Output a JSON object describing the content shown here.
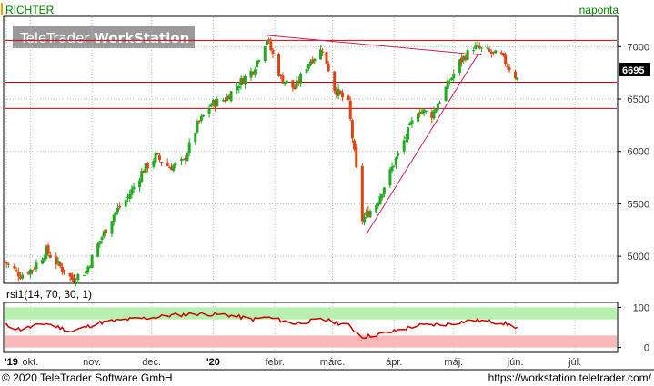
{
  "window": {
    "symbol": "RICHTER",
    "period": "naponta",
    "watermark_prefix": "TeleTrader ",
    "watermark_bold": "WorkStation",
    "copyright": "© 2020 TeleTrader Software GmbH",
    "url": "https://workstation.teletrader.com/"
  },
  "colors": {
    "accent_orange": "#f0a000",
    "title_green": "#008800",
    "candle_up": "#22aa22",
    "candle_down": "#dd4411",
    "hline": "#cc0000",
    "trendline": "#cc2255",
    "rsi_line": "#cc0000",
    "rsi_upper_band": "#b8f0b0",
    "rsi_lower_band": "#f8b8b8",
    "grid": "#a8c8a8",
    "price_label_bg": "#000000"
  },
  "chart_data": [
    {
      "type": "candlestick",
      "title": "RICHTER",
      "period": "naponta",
      "xlabels": [
        "'19",
        "okt.",
        "nov.",
        "dec.",
        "'20",
        "febr.",
        "márc.",
        "ápr.",
        "máj.",
        "jún.",
        "júl."
      ],
      "yticks": [
        "7000",
        "6500",
        "6000",
        "5500",
        "5000"
      ],
      "ytick_values": [
        7000,
        6500,
        6000,
        5500,
        5000
      ],
      "ylim": [
        4750,
        7280
      ],
      "last_price": "6695",
      "horizontal_lines": [
        7060,
        6660,
        6410
      ],
      "trendlines": [
        {
          "from": [
            "2020-01-27",
            7110
          ],
          "to": [
            "2020-05-15",
            6920
          ]
        },
        {
          "from": [
            "2020-03-18",
            5210
          ],
          "to": [
            "2020-05-13",
            6920
          ]
        }
      ],
      "x_range": [
        "2019-09-18",
        "2020-07-22"
      ],
      "grid": true,
      "series": [
        {
          "x": "2019-09-18",
          "v": 4950
        },
        {
          "x": "2019-09-26",
          "v": 4820
        },
        {
          "x": "2019-10-02",
          "v": 4880
        },
        {
          "x": "2019-10-09",
          "v": 5050
        },
        {
          "x": "2019-10-15",
          "v": 4920
        },
        {
          "x": "2019-10-22",
          "v": 4780
        },
        {
          "x": "2019-10-29",
          "v": 4860
        },
        {
          "x": "2019-11-05",
          "v": 5150
        },
        {
          "x": "2019-11-12",
          "v": 5400
        },
        {
          "x": "2019-11-19",
          "v": 5560
        },
        {
          "x": "2019-11-26",
          "v": 5800
        },
        {
          "x": "2019-12-03",
          "v": 5950
        },
        {
          "x": "2019-12-10",
          "v": 5850
        },
        {
          "x": "2019-12-17",
          "v": 5900
        },
        {
          "x": "2019-12-24",
          "v": 6250
        },
        {
          "x": "2019-12-31",
          "v": 6450
        },
        {
          "x": "2020-01-07",
          "v": 6500
        },
        {
          "x": "2020-01-14",
          "v": 6650
        },
        {
          "x": "2020-01-21",
          "v": 6780
        },
        {
          "x": "2020-01-28",
          "v": 7080
        },
        {
          "x": "2020-02-04",
          "v": 6700
        },
        {
          "x": "2020-02-11",
          "v": 6600
        },
        {
          "x": "2020-02-18",
          "v": 6850
        },
        {
          "x": "2020-02-25",
          "v": 6980
        },
        {
          "x": "2020-03-02",
          "v": 6600
        },
        {
          "x": "2020-03-09",
          "v": 6450
        },
        {
          "x": "2020-03-16",
          "v": 5350
        },
        {
          "x": "2020-03-23",
          "v": 5500
        },
        {
          "x": "2020-03-30",
          "v": 5800
        },
        {
          "x": "2020-04-06",
          "v": 6100
        },
        {
          "x": "2020-04-13",
          "v": 6400
        },
        {
          "x": "2020-04-20",
          "v": 6350
        },
        {
          "x": "2020-04-27",
          "v": 6600
        },
        {
          "x": "2020-05-04",
          "v": 6850
        },
        {
          "x": "2020-05-11",
          "v": 7000
        },
        {
          "x": "2020-05-18",
          "v": 6950
        },
        {
          "x": "2020-05-25",
          "v": 6900
        },
        {
          "x": "2020-06-02",
          "v": 6695
        }
      ]
    },
    {
      "type": "line",
      "title": "rsi1(14, 70, 30, 1)",
      "yticks": [
        "100",
        "0"
      ],
      "ytick_values": [
        100,
        0
      ],
      "ylim": [
        -10,
        110
      ],
      "bands": [
        [
          70,
          100
        ],
        [
          0,
          30
        ]
      ],
      "grid": true,
      "series": [
        {
          "x": "2019-09-18",
          "v": 56
        },
        {
          "x": "2019-09-26",
          "v": 45
        },
        {
          "x": "2019-10-09",
          "v": 60
        },
        {
          "x": "2019-10-22",
          "v": 40
        },
        {
          "x": "2019-11-05",
          "v": 62
        },
        {
          "x": "2019-11-19",
          "v": 70
        },
        {
          "x": "2019-12-03",
          "v": 75
        },
        {
          "x": "2019-12-10",
          "v": 80
        },
        {
          "x": "2019-12-24",
          "v": 84
        },
        {
          "x": "2020-01-07",
          "v": 82
        },
        {
          "x": "2020-01-21",
          "v": 70
        },
        {
          "x": "2020-01-28",
          "v": 75
        },
        {
          "x": "2020-02-11",
          "v": 60
        },
        {
          "x": "2020-02-25",
          "v": 70
        },
        {
          "x": "2020-03-09",
          "v": 55
        },
        {
          "x": "2020-03-16",
          "v": 26
        },
        {
          "x": "2020-03-30",
          "v": 38
        },
        {
          "x": "2020-04-13",
          "v": 55
        },
        {
          "x": "2020-04-27",
          "v": 58
        },
        {
          "x": "2020-05-11",
          "v": 68
        },
        {
          "x": "2020-05-25",
          "v": 62
        },
        {
          "x": "2020-06-02",
          "v": 50
        }
      ]
    }
  ]
}
